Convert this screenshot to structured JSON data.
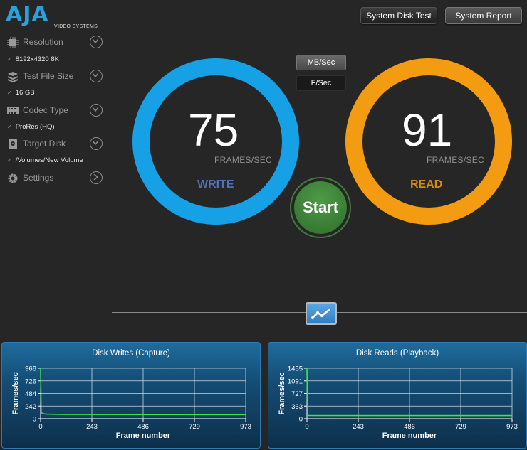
{
  "logo": {
    "text": "AJA",
    "subtitle": "VIDEO SYSTEMS"
  },
  "top_buttons": {
    "system_disk_test": "System Disk Test",
    "system_report": "System Report"
  },
  "sidebar": {
    "items": [
      {
        "label": "Resolution",
        "value": "8192x4320 8K",
        "icon": "chip-icon"
      },
      {
        "label": "Test File Size",
        "value": "16 GB",
        "icon": "stack-icon"
      },
      {
        "label": "Codec Type",
        "value": "ProRes (HQ)",
        "icon": "film-icon"
      },
      {
        "label": "Target Disk",
        "value": "/Volumes/New Volume",
        "icon": "disk-icon"
      },
      {
        "label": "Settings",
        "icon": "gear-icon"
      }
    ],
    "check": "✓"
  },
  "units": {
    "mb_sec": "MB/Sec",
    "f_sec": "F/Sec"
  },
  "write": {
    "value": "75",
    "unit": "FRAMES/SEC",
    "label": "WRITE",
    "color": "#16a1e6",
    "label_color": "#4e72b5"
  },
  "read": {
    "value": "91",
    "unit": "FRAMES/SEC",
    "label": "READ",
    "color": "#f39c12",
    "label_color": "#d48a15"
  },
  "start": {
    "label": "Start"
  },
  "charts": {
    "writes": {
      "title": "Disk Writes (Capture)",
      "ylabel": "Frames/sec",
      "xlabel": "Frame number"
    },
    "reads": {
      "title": "Disk Reads (Playback)",
      "ylabel": "Frames/sec",
      "xlabel": "Frame number"
    }
  },
  "chart_data": [
    {
      "type": "line",
      "title": "Disk Writes (Capture)",
      "xlabel": "Frame number",
      "ylabel": "Frames/sec",
      "xlim": [
        0,
        973
      ],
      "ylim": [
        0,
        968
      ],
      "xticks": [
        "0",
        "243",
        "486",
        "729",
        "973"
      ],
      "yticks": [
        "968",
        "726",
        "484",
        "242",
        "0"
      ],
      "series": [
        {
          "x": [
            0,
            3,
            10,
            30,
            100,
            243,
            486,
            729,
            973
          ],
          "values": [
            968,
            120,
            95,
            88,
            82,
            80,
            79,
            78,
            78
          ],
          "color": "#3ee63e"
        }
      ]
    },
    {
      "type": "line",
      "title": "Disk Reads (Playback)",
      "xlabel": "Frame number",
      "ylabel": "Frames/sec",
      "xlim": [
        0,
        973
      ],
      "ylim": [
        0,
        1455
      ],
      "xticks": [
        "0",
        "243",
        "486",
        "729",
        "973"
      ],
      "yticks": [
        "1455",
        "1091",
        "727",
        "363",
        "0"
      ],
      "series": [
        {
          "x": [
            0,
            3,
            10,
            243,
            486,
            729,
            973
          ],
          "values": [
            1455,
            100,
            92,
            91,
            91,
            91,
            91
          ],
          "color": "#3ee63e"
        }
      ]
    }
  ]
}
